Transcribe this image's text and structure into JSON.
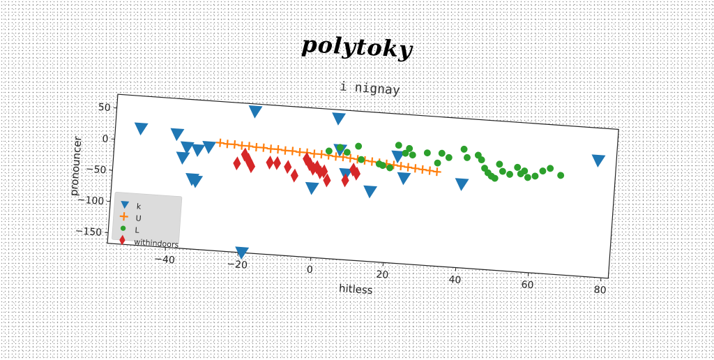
{
  "figure": {
    "title": "polytoky"
  },
  "chart_data": {
    "type": "scatter",
    "title": "i nignay",
    "xlabel": "hitless",
    "ylabel": "pronouncer",
    "xlim": [
      -56,
      82
    ],
    "ylim": [
      -167,
      72
    ],
    "xticks": [
      -40,
      -20,
      0,
      20,
      40,
      60,
      80
    ],
    "yticks": [
      50,
      0,
      -50,
      -100,
      -150
    ],
    "legend": "lower-left",
    "grid": false,
    "series": [
      {
        "name": "k",
        "marker": "triangle-down",
        "color": "#1f77b4",
        "points": [
          [
            -49,
            20
          ],
          [
            -39,
            15
          ],
          [
            -18,
            60
          ],
          [
            5,
            58
          ],
          [
            77,
            20
          ],
          [
            -36,
            -5
          ],
          [
            -33,
            -8
          ],
          [
            -37,
            -22
          ],
          [
            -34,
            -55
          ],
          [
            -33,
            -58
          ],
          [
            -30,
            -2
          ],
          [
            -1,
            -56
          ],
          [
            6,
            8
          ],
          [
            8,
            -30
          ],
          [
            15,
            -55
          ],
          [
            24,
            -30
          ],
          [
            22,
            4
          ],
          [
            40,
            -33
          ],
          [
            -19,
            -167
          ]
        ]
      },
      {
        "name": "U",
        "marker": "plus",
        "color": "#ff7f0e",
        "points": [
          [
            -27,
            6
          ],
          [
            -25,
            5
          ],
          [
            -23,
            5
          ],
          [
            -21,
            4
          ],
          [
            -19,
            4
          ],
          [
            -17,
            3
          ],
          [
            -15,
            3
          ],
          [
            -13,
            2
          ],
          [
            -11,
            2
          ],
          [
            -9,
            1
          ],
          [
            -7,
            1
          ],
          [
            -5,
            0
          ],
          [
            -3,
            0
          ],
          [
            -1,
            -1
          ],
          [
            1,
            -1
          ],
          [
            3,
            -2
          ],
          [
            5,
            -3
          ],
          [
            7,
            -3
          ],
          [
            9,
            -4
          ],
          [
            11,
            -5
          ],
          [
            13,
            -6
          ],
          [
            15,
            -7
          ],
          [
            17,
            -8
          ],
          [
            19,
            -9
          ],
          [
            21,
            -10
          ],
          [
            23,
            -11
          ],
          [
            25,
            -12
          ],
          [
            27,
            -13
          ],
          [
            29,
            -14
          ],
          [
            31,
            -15
          ],
          [
            33,
            -16
          ]
        ]
      },
      {
        "name": "L",
        "marker": "circle",
        "color": "#2ca02c",
        "points": [
          [
            3,
            5
          ],
          [
            6,
            12
          ],
          [
            8,
            5
          ],
          [
            11,
            16
          ],
          [
            12,
            -5
          ],
          [
            17,
            -10
          ],
          [
            18,
            -12
          ],
          [
            20,
            -15
          ],
          [
            22,
            22
          ],
          [
            24,
            10
          ],
          [
            25,
            18
          ],
          [
            26,
            8
          ],
          [
            30,
            13
          ],
          [
            33,
            -2
          ],
          [
            34,
            14
          ],
          [
            36,
            8
          ],
          [
            40,
            23
          ],
          [
            41,
            10
          ],
          [
            44,
            15
          ],
          [
            45,
            8
          ],
          [
            46,
            -5
          ],
          [
            47,
            -12
          ],
          [
            48,
            -17
          ],
          [
            49,
            -20
          ],
          [
            50,
            3
          ],
          [
            51,
            -8
          ],
          [
            53,
            -12
          ],
          [
            55,
            0
          ],
          [
            56,
            -10
          ],
          [
            57,
            -5
          ],
          [
            58,
            -15
          ],
          [
            60,
            -12
          ],
          [
            62,
            -3
          ],
          [
            64,
            2
          ],
          [
            67,
            -8
          ]
        ]
      },
      {
        "name": "withindoors",
        "marker": "diamond",
        "color": "#d62728",
        "points": [
          [
            -22,
            -25
          ],
          [
            -20,
            -10
          ],
          [
            -19,
            -18
          ],
          [
            -18,
            -28
          ],
          [
            -13,
            -20
          ],
          [
            -11,
            -20
          ],
          [
            -8,
            -25
          ],
          [
            -6,
            -38
          ],
          [
            -3,
            -10
          ],
          [
            -2,
            -18
          ],
          [
            -1,
            -25
          ],
          [
            0,
            -22
          ],
          [
            1,
            -30
          ],
          [
            2,
            -28
          ],
          [
            3,
            -42
          ],
          [
            8,
            -40
          ],
          [
            10,
            -22
          ],
          [
            11,
            -28
          ]
        ]
      }
    ]
  }
}
